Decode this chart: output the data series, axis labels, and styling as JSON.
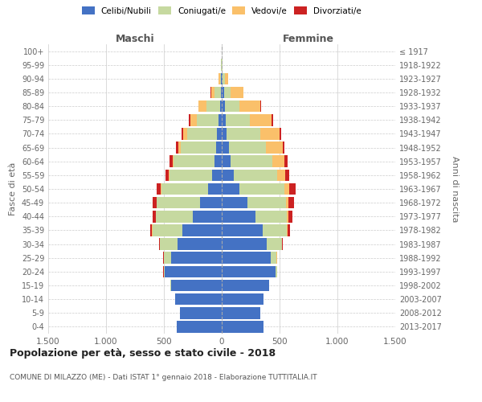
{
  "age_groups": [
    "0-4",
    "5-9",
    "10-14",
    "15-19",
    "20-24",
    "25-29",
    "30-34",
    "35-39",
    "40-44",
    "45-49",
    "50-54",
    "55-59",
    "60-64",
    "65-69",
    "70-74",
    "75-79",
    "80-84",
    "85-89",
    "90-94",
    "95-99",
    "100+"
  ],
  "birth_years": [
    "2013-2017",
    "2008-2012",
    "2003-2007",
    "1998-2002",
    "1993-1997",
    "1988-1992",
    "1983-1987",
    "1978-1982",
    "1973-1977",
    "1968-1972",
    "1963-1967",
    "1958-1962",
    "1953-1957",
    "1948-1952",
    "1943-1947",
    "1938-1942",
    "1933-1937",
    "1928-1932",
    "1923-1927",
    "1918-1922",
    "≤ 1917"
  ],
  "male_celibe": [
    390,
    360,
    400,
    440,
    490,
    440,
    380,
    340,
    250,
    185,
    120,
    80,
    65,
    50,
    40,
    25,
    15,
    10,
    5,
    2,
    2
  ],
  "male_coniugato": [
    0,
    0,
    0,
    2,
    12,
    60,
    155,
    260,
    320,
    375,
    400,
    370,
    350,
    305,
    260,
    190,
    115,
    50,
    12,
    2,
    0
  ],
  "male_vedovo": [
    0,
    0,
    0,
    0,
    1,
    1,
    1,
    2,
    2,
    3,
    5,
    7,
    12,
    22,
    32,
    55,
    68,
    32,
    10,
    2,
    0
  ],
  "male_divorziato": [
    0,
    0,
    0,
    0,
    1,
    3,
    5,
    15,
    28,
    33,
    38,
    28,
    27,
    22,
    18,
    15,
    5,
    2,
    1,
    0,
    0
  ],
  "female_celibe": [
    360,
    330,
    360,
    410,
    465,
    425,
    390,
    355,
    290,
    220,
    155,
    105,
    75,
    60,
    45,
    35,
    25,
    18,
    10,
    3,
    2
  ],
  "female_coniugato": [
    0,
    0,
    0,
    2,
    12,
    50,
    130,
    210,
    275,
    335,
    390,
    375,
    365,
    325,
    285,
    205,
    130,
    60,
    15,
    2,
    0
  ],
  "female_vedovo": [
    0,
    0,
    0,
    0,
    1,
    2,
    3,
    5,
    8,
    18,
    40,
    68,
    102,
    140,
    170,
    192,
    180,
    108,
    28,
    5,
    0
  ],
  "female_divorziato": [
    0,
    0,
    0,
    0,
    2,
    4,
    8,
    20,
    38,
    52,
    52,
    33,
    25,
    20,
    16,
    10,
    7,
    3,
    1,
    0,
    0
  ],
  "colors": {
    "celibe": "#4472c4",
    "coniugato": "#c6d9a0",
    "vedovo": "#fac06a",
    "divorziato": "#cc2222"
  },
  "title": "Popolazione per età, sesso e stato civile - 2018",
  "subtitle": "COMUNE DI MILAZZO (ME) - Dati ISTAT 1° gennaio 2018 - Elaborazione TUTTITALIA.IT",
  "xlabel_left": "Maschi",
  "xlabel_right": "Femmine",
  "ylabel_left": "Fasce di età",
  "ylabel_right": "Anni di nascita",
  "xlim": 1500,
  "xticks": [
    -1500,
    -1000,
    -500,
    0,
    500,
    1000,
    1500
  ],
  "xticklabels": [
    "1.500",
    "1.000",
    "500",
    "0",
    "500",
    "1.000",
    "1.500"
  ],
  "background_color": "#ffffff",
  "grid_color": "#cccccc"
}
